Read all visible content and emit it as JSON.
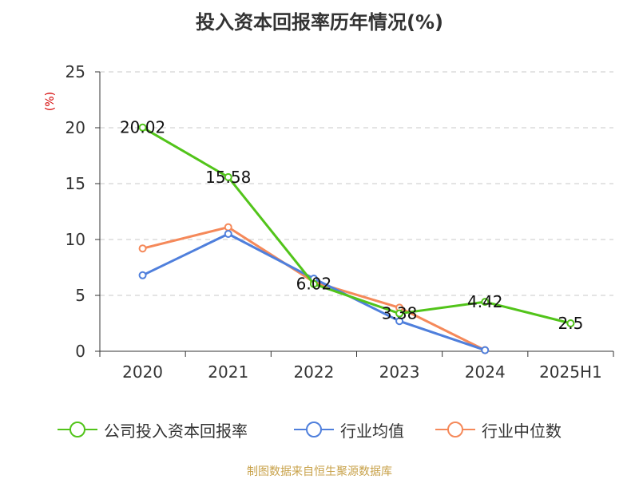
{
  "title": "投入资本回报率历年情况(%)",
  "source": "制图数据来自恒生聚源数据库",
  "chart_data": {
    "type": "line",
    "title": "投入资本回报率历年情况(%)",
    "ylabel": "(%)",
    "xlabel": "",
    "categories": [
      "2020",
      "2021",
      "2022",
      "2023",
      "2024",
      "2025H1"
    ],
    "ylim": [
      0,
      25
    ],
    "yticks": [
      "0",
      "5",
      "10",
      "15",
      "20",
      "25"
    ],
    "grid": true,
    "legend_position": "bottom",
    "series": [
      {
        "name": "公司投入资本回报率",
        "color": "#52c41a",
        "values": [
          20.02,
          15.58,
          6.02,
          3.38,
          4.42,
          2.5
        ],
        "labels": [
          "20.02",
          "15.58",
          "6.02",
          "3.38",
          "4.42",
          "2.5"
        ]
      },
      {
        "name": "行业均值",
        "color": "#4f7fdc",
        "values": [
          6.8,
          10.5,
          6.5,
          2.7,
          0.1,
          null
        ]
      },
      {
        "name": "行业中位数",
        "color": "#f5895a",
        "values": [
          9.2,
          11.1,
          6.2,
          3.9,
          0.1,
          null
        ]
      }
    ]
  }
}
